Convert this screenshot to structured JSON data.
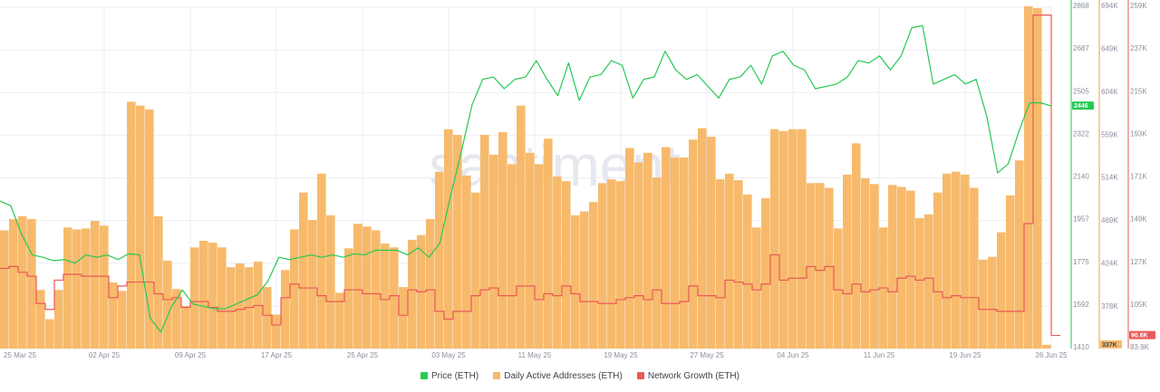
{
  "watermark": "santiment",
  "colors": {
    "price": "#26c953",
    "daa": "#f7ba6c",
    "daa_stroke": "#ee9f3c",
    "growth": "#ea5959",
    "grid": "#eceef2",
    "axis_text": "#8a8f9c"
  },
  "chart_data": {
    "type": "line+bar",
    "x_ticks": [
      "25 Mar 25",
      "02 Apr 25",
      "09 Apr 25",
      "17 Apr 25",
      "25 Apr 25",
      "03 May 25",
      "11 May 25",
      "19 May 25",
      "27 May 25",
      "04 Jun 25",
      "11 Jun 25",
      "19 Jun 25",
      "26 Jun 25"
    ],
    "price_axis": {
      "ticks": [
        "2868",
        "2687",
        "2505",
        "2322",
        "2140",
        "1957",
        "1775",
        "1592",
        "1410"
      ],
      "range": [
        1410,
        2868
      ],
      "current_label": "2446",
      "current_value": 2446
    },
    "daa_axis": {
      "ticks": [
        "694K",
        "649K",
        "604K",
        "559K",
        "514K",
        "469K",
        "424K",
        "378K"
      ],
      "range": [
        333000,
        694000
      ],
      "current_label": "337K",
      "current_value": 337000
    },
    "growth_axis": {
      "ticks": [
        "259K",
        "237K",
        "215K",
        "193K",
        "171K",
        "149K",
        "127K",
        "105K",
        "83.9K"
      ],
      "range": [
        83900,
        259000
      ],
      "current_label": "90.6K",
      "current_value": 90600
    },
    "series": [
      {
        "name": "Price (ETH)",
        "axis": "price",
        "values": [
          2040,
          2020,
          1900,
          1810,
          1800,
          1785,
          1790,
          1775,
          1810,
          1800,
          1810,
          1790,
          1815,
          1810,
          1540,
          1480,
          1590,
          1660,
          1600,
          1590,
          1580,
          1580,
          1600,
          1620,
          1640,
          1700,
          1800,
          1790,
          1800,
          1810,
          1800,
          1810,
          1800,
          1815,
          1810,
          1830,
          1830,
          1830,
          1810,
          1840,
          1800,
          1860,
          2060,
          2250,
          2450,
          2560,
          2570,
          2520,
          2560,
          2570,
          2640,
          2560,
          2490,
          2630,
          2470,
          2570,
          2580,
          2640,
          2620,
          2480,
          2560,
          2570,
          2680,
          2600,
          2560,
          2580,
          2530,
          2480,
          2560,
          2570,
          2620,
          2540,
          2660,
          2680,
          2620,
          2600,
          2520,
          2530,
          2540,
          2570,
          2640,
          2630,
          2660,
          2600,
          2660,
          2780,
          2790,
          2540,
          2560,
          2580,
          2540,
          2560,
          2400,
          2160,
          2200,
          2340,
          2460,
          2460,
          2446
        ]
      },
      {
        "name": "Daily Active Addresses (ETH)",
        "axis": "daa",
        "values": [
          458000,
          470000,
          473000,
          470000,
          395000,
          364000,
          395000,
          461000,
          459000,
          460000,
          468000,
          463000,
          403000,
          394000,
          594000,
          590000,
          586000,
          473000,
          426000,
          396000,
          378000,
          440000,
          447000,
          445000,
          440000,
          419000,
          423000,
          419000,
          425000,
          398000,
          369000,
          416000,
          459000,
          498000,
          469000,
          518000,
          474000,
          392000,
          439000,
          465000,
          462000,
          458000,
          444000,
          440000,
          398000,
          448000,
          453000,
          470000,
          520000,
          565000,
          559000,
          516000,
          498000,
          559000,
          538000,
          562000,
          528000,
          590000,
          540000,
          528000,
          555000,
          515000,
          510000,
          474000,
          478000,
          488000,
          508000,
          512000,
          510000,
          545000,
          530000,
          540000,
          514000,
          546000,
          535000,
          535000,
          554000,
          566000,
          557000,
          512000,
          518000,
          511000,
          496000,
          461000,
          492000,
          565000,
          563000,
          565000,
          565000,
          508000,
          508000,
          503000,
          460000,
          517000,
          550000,
          513000,
          507000,
          461000,
          506000,
          504000,
          500000,
          471000,
          475000,
          498000,
          518000,
          520000,
          517000,
          503000,
          427000,
          430000,
          456000,
          495000,
          532000,
          695000,
          693000,
          337000
        ]
      },
      {
        "name": "Network Growth (ETH)",
        "axis": "growth",
        "values": [
          125000,
          126000,
          123000,
          121000,
          107000,
          104000,
          119000,
          122000,
          122000,
          121000,
          121000,
          121000,
          110000,
          116000,
          118000,
          118000,
          118000,
          112000,
          109000,
          110000,
          105000,
          108000,
          108000,
          105000,
          103000,
          103000,
          104000,
          105000,
          106000,
          101000,
          96000,
          110000,
          117000,
          115000,
          115000,
          111000,
          108000,
          108000,
          114000,
          114000,
          112000,
          112000,
          109000,
          111000,
          101000,
          114000,
          113000,
          114000,
          103000,
          99000,
          103000,
          103000,
          111000,
          114000,
          115000,
          111000,
          111000,
          116000,
          116000,
          109000,
          112000,
          111000,
          116000,
          112000,
          108000,
          108000,
          107000,
          107000,
          109000,
          110000,
          111000,
          109000,
          114000,
          107000,
          107000,
          108000,
          116000,
          111000,
          111000,
          110000,
          119000,
          118000,
          117000,
          114000,
          117000,
          132000,
          119000,
          120000,
          120000,
          126000,
          124000,
          126000,
          114000,
          112000,
          117000,
          113000,
          114000,
          115000,
          113000,
          120000,
          121000,
          119000,
          120000,
          113000,
          110000,
          111000,
          110000,
          110000,
          104000,
          104000,
          103000,
          103000,
          103000,
          148000,
          255000,
          255000,
          90600
        ]
      }
    ],
    "legend": [
      "Price (ETH)",
      "Daily Active Addresses (ETH)",
      "Network Growth (ETH)"
    ],
    "grid": true,
    "legend_position": "bottom-center"
  }
}
